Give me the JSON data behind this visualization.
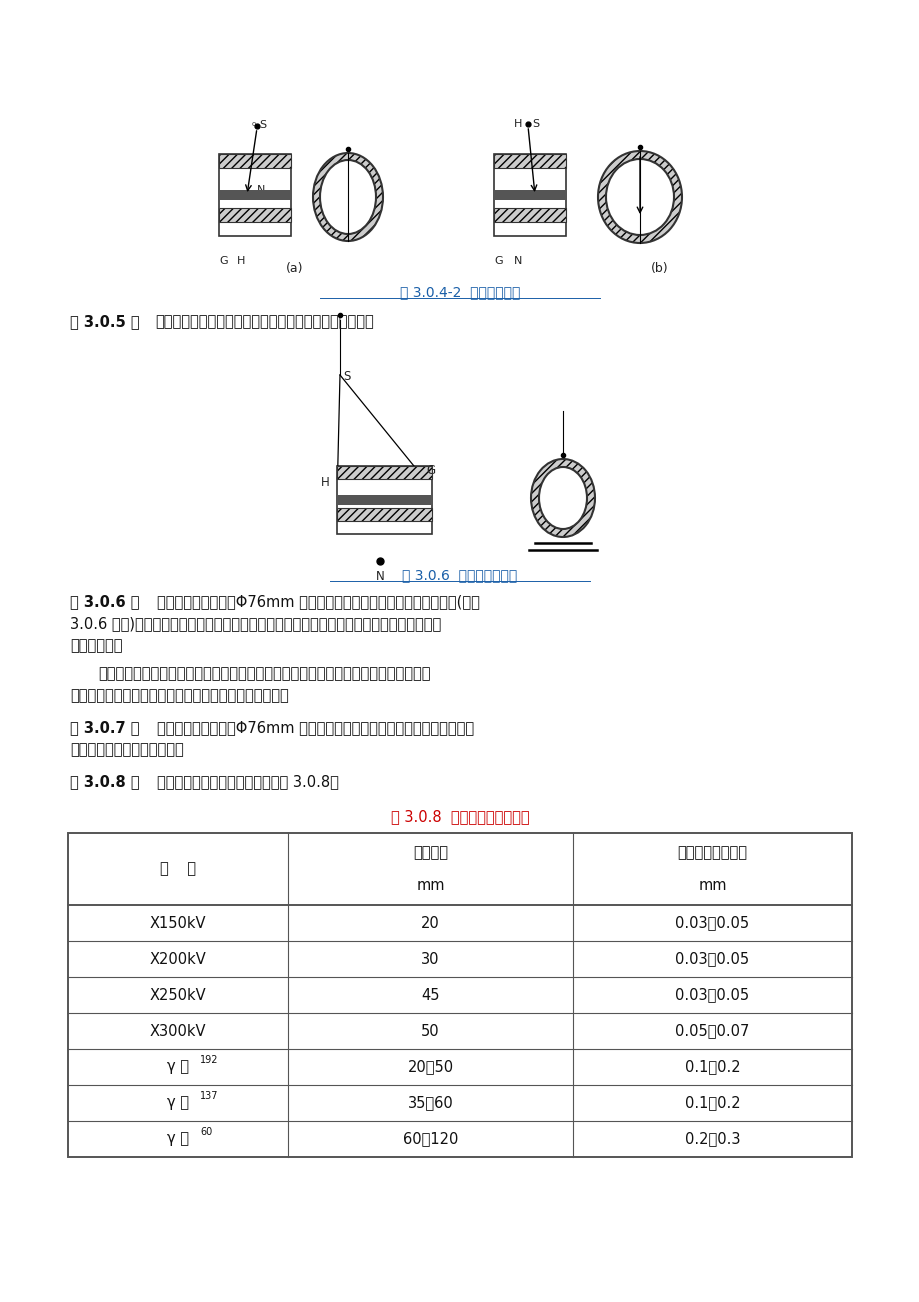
{
  "page_bg": "#ffffff",
  "content_bg": "#ffffff",
  "fig_caption1": "图 3.0.4-2  外透法示意图",
  "fig_caption2": "图 3.0.6  椭圆透照示意图",
  "table_title": "表 3.0.8  铅箔增感屏推荐厚度",
  "caption_color": "#1a5fa8",
  "table_title_color": "#cc0000",
  "text_color": "#111111",
  "border_color": "#555555",
  "table_rows_col1": [
    "X150kV",
    "X200kV",
    "X250kV",
    "X300kV",
    "γ 铱 192",
    "γ 铯 137",
    "γ 钴 60"
  ],
  "table_rows_col2": [
    "20",
    "30",
    "45",
    "50",
    "20～50",
    "35～60",
    "60～120"
  ],
  "table_rows_col3": [
    "0.03～0.05",
    "0.03～0.05",
    "0.03～0.05",
    "0.05～0.07",
    "0.1～0.2",
    "0.1～0.2",
    "0.2～0.3"
  ],
  "table_superscripts": [
    "",
    "",
    "",
    "",
    "192",
    "137",
    "60"
  ]
}
